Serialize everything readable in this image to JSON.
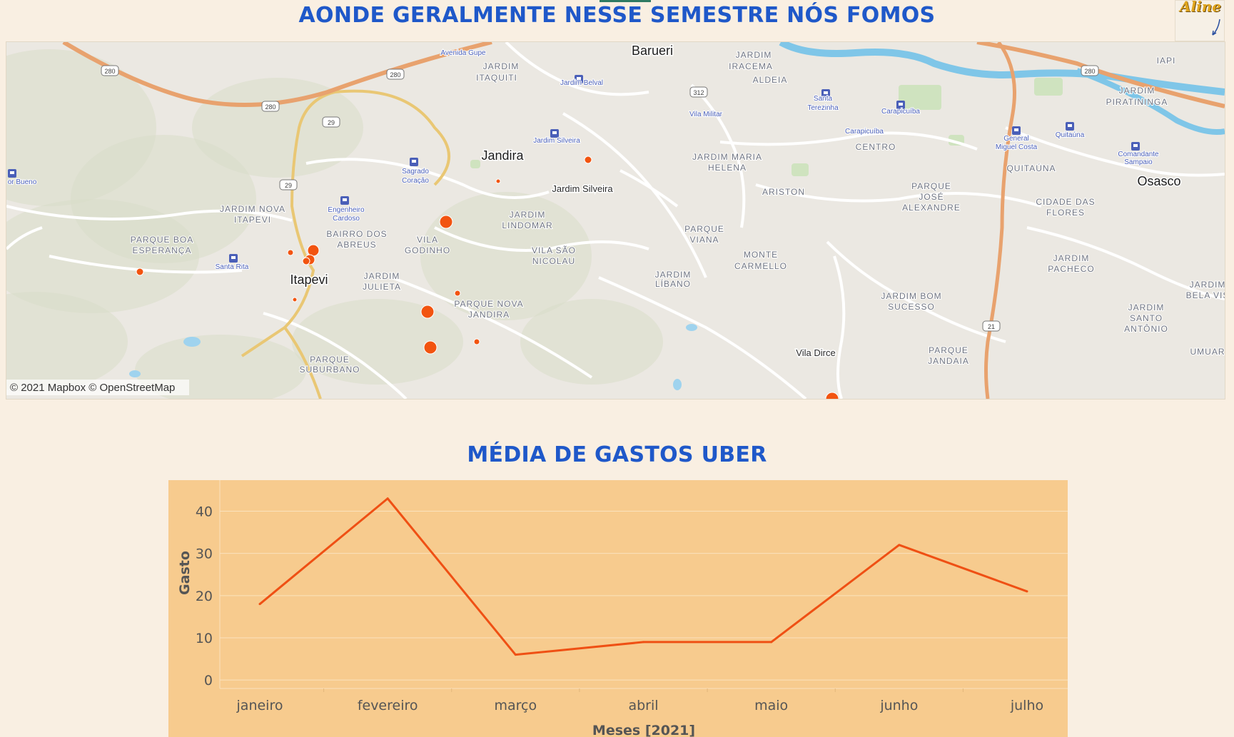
{
  "map": {
    "title": "AONDE GERALMENTE NESSE SEMESTRE NÓS FOMOS",
    "attribution": "© 2021 Mapbox © OpenStreetMap",
    "avatar_text": "Aline",
    "place_labels": [
      "Barueri",
      "JARDIM",
      "IRACEMA",
      "ALDEIA",
      "JARDIM",
      "ITAQUITI",
      "Jardim Belval",
      "Avenida Gupe",
      "Vila Militar",
      "Santa",
      "Terezinha",
      "Carapicuíba",
      "Carapicuíba",
      "CENTRO",
      "General",
      "Miguel Costa",
      "Quitaúna",
      "Comandante",
      "Sampaio",
      "JARDIM",
      "PIRATININGA",
      "IAPI",
      "Osasco",
      "QUITAÚNA",
      "Jardim Silveira",
      "Jandira",
      "Sagrado",
      "Coração",
      "or Bueno",
      "JARDIM NOVA",
      "ITAPEVI",
      "Engenheiro",
      "Cardoso",
      "BAIRRO DOS",
      "ABREUS",
      "VILA",
      "GODINHO",
      "JARDIM",
      "LINDOMAR",
      "Jardim Silveira",
      "JARDIM MARIA",
      "HELENA",
      "ARISTON",
      "PARQUE",
      "JOSÉ",
      "ALEXANDRE",
      "CIDADE DAS",
      "FLORES",
      "PARQUE BOA",
      "ESPERANÇA",
      "Santa Rita",
      "Itapevi",
      "JARDIM",
      "JULIETA",
      "VILA SÃO",
      "NICOLAU",
      "PARQUE",
      "VIANA",
      "JARDIM",
      "LÍBANO",
      "MONTE",
      "CARMELLO",
      "JARDIM",
      "PACHECO",
      "PARQUE NOVA",
      "JANDIRA",
      "JARDIM BOM",
      "SUCESSO",
      "JARDIM",
      "SANTO",
      "ANTÔNIO",
      "JARDIM",
      "BELA VIS",
      "UMUAR",
      "PARQUE",
      "JANDAIA",
      "Vila Dirce",
      "PARQUE",
      "SUBURBANO"
    ],
    "road_shields": [
      "280",
      "280",
      "280",
      "29",
      "29",
      "312",
      "280",
      "21"
    ],
    "marker_color": "#f25410"
  },
  "chart": {
    "title": "MÉDIA DE GASTOS UBER",
    "line_color": "#ef5014",
    "background": "#f7cb8e"
  },
  "chart_data": {
    "type": "line",
    "title": "MÉDIA DE GASTOS UBER",
    "xlabel": "Meses [2021]",
    "ylabel": "Gasto",
    "categories": [
      "janeiro",
      "fevereiro",
      "março",
      "abril",
      "maio",
      "junho",
      "julho"
    ],
    "values": [
      18,
      43,
      6,
      9,
      9,
      32,
      21
    ],
    "yticks": [
      0,
      10,
      20,
      30,
      40
    ],
    "ylim": [
      -2,
      46
    ],
    "grid": true
  }
}
